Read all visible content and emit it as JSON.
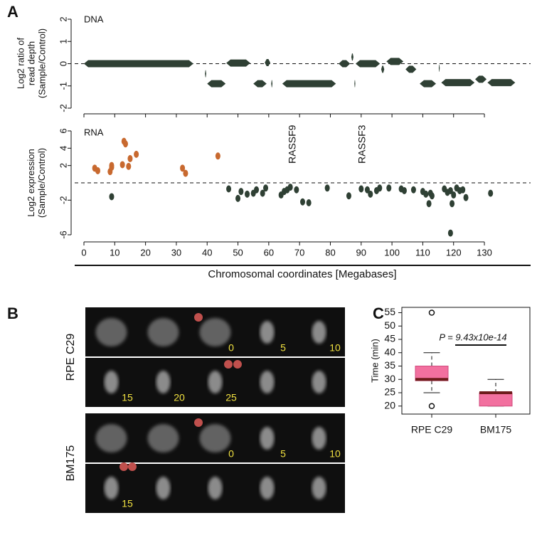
{
  "panel_labels": [
    "A",
    "B",
    "C"
  ],
  "chart_data": [
    {
      "type": "segment",
      "label": "DNA",
      "ylabel": [
        "Log2 ratio of",
        "read depth",
        "(Sample/Control)"
      ],
      "color": "#2f4034",
      "x_start": [
        0,
        39.3,
        40,
        46.2,
        55,
        58.7,
        60.8,
        64.4,
        82.7,
        86.8,
        87.8,
        88.2,
        96.5,
        98.2,
        104.4,
        109,
        115.2,
        116,
        127,
        131
      ],
      "x_end": [
        35.5,
        39.7,
        46,
        54,
        59.3,
        60.5,
        61.2,
        81.8,
        86.4,
        87.5,
        88.1,
        96.1,
        97.5,
        103.7,
        107.9,
        114.3,
        115.5,
        126.8,
        130.7,
        140
      ],
      "values": [
        0,
        -0.45,
        -0.9,
        0.03,
        -0.9,
        0.05,
        -0.9,
        -0.9,
        0,
        0.3,
        -0.9,
        0,
        -0.25,
        0.1,
        -0.25,
        -0.9,
        -0.2,
        -0.85,
        -0.7,
        -0.85
      ],
      "xlim": [
        -3,
        145
      ],
      "xticks": [
        0,
        10,
        20,
        30,
        40,
        50,
        60,
        70,
        80,
        90,
        100,
        110,
        120,
        130
      ],
      "ylim": [
        -2,
        2
      ],
      "yticks": [
        -2,
        -1,
        0,
        1,
        2
      ]
    },
    {
      "type": "scatter",
      "label": "RNA",
      "ylabel": [
        "Log2 expression",
        "(Sample/Control)"
      ],
      "xlabel": "Chromosomal coordinates [Megabases]",
      "annotations": [
        "RASSF9",
        "RASSF3"
      ],
      "series": [
        {
          "color": "#c8692f",
          "x": [
            3.5,
            4.5,
            8.5,
            9,
            9,
            12.5,
            13,
            13.5,
            14.5,
            15,
            17,
            32,
            33,
            43.5
          ],
          "values": [
            1.7,
            1.4,
            1.3,
            1.8,
            2,
            2.1,
            4.8,
            4.5,
            1.9,
            2.8,
            3.3,
            1.7,
            1.1,
            3.1
          ]
        },
        {
          "color": "#2f4034",
          "x": [
            9,
            47,
            50,
            51,
            53,
            55,
            56,
            58,
            59,
            64,
            65,
            66,
            67,
            69,
            71,
            73,
            79,
            86,
            90,
            92,
            93,
            95,
            96,
            99,
            103,
            104,
            107,
            110,
            111,
            112,
            112.5,
            113,
            117,
            118,
            119,
            119.5,
            120,
            121,
            122,
            123,
            124,
            132,
            119
          ],
          "values": [
            -1.6,
            -0.7,
            -1.8,
            -1,
            -1.3,
            -1.2,
            -0.8,
            -1.2,
            -0.6,
            -1.4,
            -1,
            -0.8,
            -0.5,
            -0.8,
            -2.2,
            -2.3,
            -0.6,
            -1.5,
            -0.7,
            -0.8,
            -1.3,
            -0.9,
            -0.6,
            -0.6,
            -0.7,
            -0.9,
            -0.8,
            -1,
            -1.3,
            -2.4,
            -1.2,
            -1.5,
            -0.7,
            -1.1,
            -0.9,
            -2.4,
            -1.4,
            -0.6,
            -0.9,
            -0.8,
            -1.7,
            -1.2,
            -5.8
          ]
        }
      ],
      "xlim": [
        -3,
        145
      ],
      "xticks": [
        0,
        10,
        20,
        30,
        40,
        50,
        60,
        70,
        80,
        90,
        100,
        110,
        120,
        130
      ],
      "ylim": [
        -6,
        6
      ],
      "yticks": [
        -6,
        -2,
        2,
        4,
        6
      ]
    },
    {
      "type": "box",
      "ylabel": "Time (min)",
      "categories": [
        "RPE C29",
        "BM175"
      ],
      "annotation": "P = 9.43x10e-14",
      "color": "#f2709f",
      "median_color": "#6e1b1b",
      "whisker_low": [
        25,
        20
      ],
      "q1": [
        29.5,
        20
      ],
      "median": [
        30,
        25
      ],
      "q3": [
        35,
        25
      ],
      "whisker_high": [
        40,
        30
      ],
      "outliers": [
        [
          55,
          20
        ],
        []
      ],
      "ylim": [
        17,
        57
      ],
      "yticks": [
        20,
        25,
        30,
        35,
        40,
        45,
        50,
        55
      ]
    }
  ],
  "micrographs": [
    {
      "name": "RPE C29",
      "frames": [
        null,
        null,
        "0",
        "5",
        "10",
        "15",
        "20",
        "25",
        null,
        null
      ]
    },
    {
      "name": "BM175",
      "frames": [
        null,
        null,
        "0",
        "5",
        "10",
        "15",
        null,
        null,
        null,
        null
      ]
    }
  ]
}
